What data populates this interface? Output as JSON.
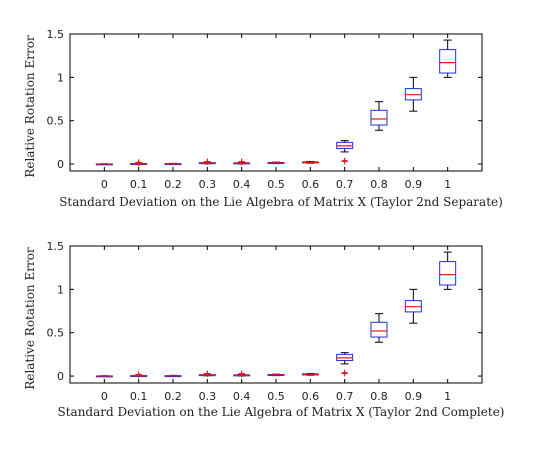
{
  "colors": {
    "box": "#1f2fd6",
    "median": "#e41a1c",
    "whisker": "#000000",
    "outlier": "#e41a1c",
    "axis": "#000000"
  },
  "chart_data": [
    {
      "type": "box",
      "xlabel": "Standard Deviation on the Lie Algebra of Matrix X (Taylor 2nd Separate)",
      "ylabel": "Relative Rotation Error",
      "categories": [
        "0",
        "0.1",
        "0.2",
        "0.3",
        "0.4",
        "0.5",
        "0.6",
        "0.7",
        "0.8",
        "0.9",
        "1"
      ],
      "ylim": [
        -0.08,
        1.5
      ],
      "yticks": [
        "0",
        "0.5",
        "1",
        "1.5"
      ],
      "grid": false,
      "boxes": [
        {
          "q1": 0.0,
          "median": 0.0,
          "q3": 0.002,
          "whisker_low": 0.0,
          "whisker_high": 0.004,
          "outliers": []
        },
        {
          "q1": 0.002,
          "median": 0.004,
          "q3": 0.006,
          "whisker_low": 0.0,
          "whisker_high": 0.01,
          "outliers": [
            0.012,
            0.02
          ]
        },
        {
          "q1": 0.001,
          "median": 0.003,
          "q3": 0.005,
          "whisker_low": 0.0,
          "whisker_high": 0.008,
          "outliers": []
        },
        {
          "q1": 0.008,
          "median": 0.012,
          "q3": 0.016,
          "whisker_low": 0.004,
          "whisker_high": 0.02,
          "outliers": [
            0.025,
            0.03
          ]
        },
        {
          "q1": 0.005,
          "median": 0.01,
          "q3": 0.014,
          "whisker_low": 0.002,
          "whisker_high": 0.018,
          "outliers": [
            0.02,
            0.03
          ]
        },
        {
          "q1": 0.01,
          "median": 0.014,
          "q3": 0.018,
          "whisker_low": 0.005,
          "whisker_high": 0.022,
          "outliers": []
        },
        {
          "q1": 0.015,
          "median": 0.02,
          "q3": 0.025,
          "whisker_low": 0.01,
          "whisker_high": 0.03,
          "outliers": []
        },
        {
          "q1": 0.18,
          "median": 0.21,
          "q3": 0.25,
          "whisker_low": 0.14,
          "whisker_high": 0.27,
          "outliers": [
            0.03,
            0.04
          ]
        },
        {
          "q1": 0.45,
          "median": 0.52,
          "q3": 0.62,
          "whisker_low": 0.39,
          "whisker_high": 0.72,
          "outliers": []
        },
        {
          "q1": 0.74,
          "median": 0.8,
          "q3": 0.87,
          "whisker_low": 0.61,
          "whisker_high": 1.0,
          "outliers": []
        },
        {
          "q1": 1.05,
          "median": 1.17,
          "q3": 1.32,
          "whisker_low": 1.0,
          "whisker_high": 1.43,
          "outliers": []
        }
      ]
    },
    {
      "type": "box",
      "xlabel": "Standard Deviation on the Lie Algebra of Matrix X (Taylor 2nd Complete)",
      "ylabel": "Relative Rotation Error",
      "categories": [
        "0",
        "0.1",
        "0.2",
        "0.3",
        "0.4",
        "0.5",
        "0.6",
        "0.7",
        "0.8",
        "0.9",
        "1"
      ],
      "ylim": [
        -0.08,
        1.5
      ],
      "yticks": [
        "0",
        "0.5",
        "1",
        "1.5"
      ],
      "grid": false,
      "boxes": [
        {
          "q1": 0.0,
          "median": 0.0,
          "q3": 0.002,
          "whisker_low": 0.0,
          "whisker_high": 0.004,
          "outliers": []
        },
        {
          "q1": 0.002,
          "median": 0.004,
          "q3": 0.006,
          "whisker_low": 0.0,
          "whisker_high": 0.01,
          "outliers": [
            0.012,
            0.02
          ]
        },
        {
          "q1": 0.001,
          "median": 0.003,
          "q3": 0.005,
          "whisker_low": 0.0,
          "whisker_high": 0.008,
          "outliers": []
        },
        {
          "q1": 0.008,
          "median": 0.012,
          "q3": 0.016,
          "whisker_low": 0.004,
          "whisker_high": 0.02,
          "outliers": [
            0.025,
            0.03
          ]
        },
        {
          "q1": 0.005,
          "median": 0.01,
          "q3": 0.014,
          "whisker_low": 0.002,
          "whisker_high": 0.018,
          "outliers": [
            0.02,
            0.03
          ]
        },
        {
          "q1": 0.01,
          "median": 0.014,
          "q3": 0.018,
          "whisker_low": 0.005,
          "whisker_high": 0.022,
          "outliers": []
        },
        {
          "q1": 0.015,
          "median": 0.02,
          "q3": 0.025,
          "whisker_low": 0.01,
          "whisker_high": 0.03,
          "outliers": []
        },
        {
          "q1": 0.18,
          "median": 0.21,
          "q3": 0.25,
          "whisker_low": 0.14,
          "whisker_high": 0.27,
          "outliers": [
            0.03,
            0.04
          ]
        },
        {
          "q1": 0.45,
          "median": 0.52,
          "q3": 0.62,
          "whisker_low": 0.39,
          "whisker_high": 0.72,
          "outliers": []
        },
        {
          "q1": 0.74,
          "median": 0.8,
          "q3": 0.87,
          "whisker_low": 0.61,
          "whisker_high": 1.0,
          "outliers": []
        },
        {
          "q1": 1.05,
          "median": 1.17,
          "q3": 1.32,
          "whisker_low": 1.0,
          "whisker_high": 1.43,
          "outliers": []
        }
      ]
    }
  ]
}
